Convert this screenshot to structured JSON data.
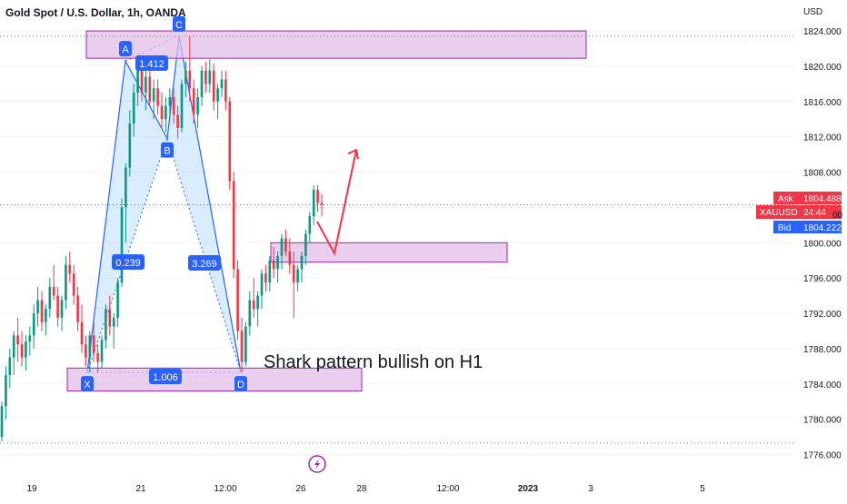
{
  "header": {
    "symbol_title": "Gold Spot / U.S. Dollar, 1h, OANDA"
  },
  "colors": {
    "up": "#089981",
    "down": "#f23645",
    "pattern": "#2962ff",
    "pattern_fill": "#bbdefb",
    "zone_fill": "#e1bee7",
    "zone_stroke": "#9c27b0",
    "ask": "#f23645",
    "bid": "#2962ff",
    "grid": "#f0f3fa",
    "axis_text": "#131722",
    "lightning": "#9c27b0"
  },
  "chart_data": {
    "type": "candlestick",
    "y_unit_label": "USD",
    "ylim": [
      1774,
      1827.5
    ],
    "y_ticks": [
      1776,
      1780,
      1784,
      1788,
      1792,
      1796,
      1800,
      1804,
      1808,
      1812,
      1816,
      1820,
      1824
    ],
    "x_tick_labels": [
      "19",
      "21",
      "12:00",
      "26",
      "28",
      "12:00",
      "2023",
      "3",
      "5"
    ],
    "annotation_text": "Shark pattern bullish on H1",
    "pattern_points": [
      {
        "label": "X",
        "price": 1785.3
      },
      {
        "label": "A",
        "price": 1820.6
      },
      {
        "label": "B",
        "price": 1811.8
      },
      {
        "label": "C",
        "price": 1823.4
      },
      {
        "label": "D",
        "price": 1785.3
      }
    ],
    "ratios": [
      {
        "value": "1.412"
      },
      {
        "value": "0.239"
      },
      {
        "value": "3.269"
      },
      {
        "value": "1.006"
      }
    ],
    "zones": [
      {
        "top": 1824.0,
        "bottom": 1820.9
      },
      {
        "top": 1800.0,
        "bottom": 1797.8
      },
      {
        "top": 1785.8,
        "bottom": 1783.2
      }
    ],
    "projection_prices": [
      1802.4,
      1798.8,
      1810.5
    ],
    "price_tags": {
      "ask_label": "Ask",
      "ask_value": "1804.488",
      "symbol": "XAUUSD",
      "countdown": "24:44",
      "bid_label": "Bid",
      "bid_value": "1804.222",
      "partial_label": "00"
    },
    "candles": [
      [
        1778.0,
        1782.0,
        1777.5,
        1781.5
      ],
      [
        1781.5,
        1786.0,
        1780.0,
        1785.0
      ],
      [
        1785.0,
        1788.0,
        1783.5,
        1787.0
      ],
      [
        1787.0,
        1790.0,
        1785.0,
        1789.5
      ],
      [
        1789.5,
        1791.5,
        1786.5,
        1788.5
      ],
      [
        1788.5,
        1790.0,
        1786.0,
        1787.0
      ],
      [
        1787.0,
        1789.5,
        1785.5,
        1788.8
      ],
      [
        1788.8,
        1790.5,
        1787.2,
        1789.5
      ],
      [
        1789.5,
        1793.0,
        1788.0,
        1792.0
      ],
      [
        1792.0,
        1795.0,
        1790.5,
        1793.5
      ],
      [
        1793.5,
        1794.5,
        1790.0,
        1791.0
      ],
      [
        1791.0,
        1793.0,
        1789.5,
        1792.5
      ],
      [
        1792.5,
        1796.0,
        1791.5,
        1795.0
      ],
      [
        1795.0,
        1797.5,
        1793.5,
        1794.0
      ],
      [
        1794.0,
        1795.0,
        1790.5,
        1791.5
      ],
      [
        1791.5,
        1794.0,
        1790.0,
        1793.5
      ],
      [
        1793.5,
        1798.5,
        1792.5,
        1797.5
      ],
      [
        1797.5,
        1799.0,
        1795.5,
        1796.5
      ],
      [
        1796.5,
        1797.5,
        1793.0,
        1794.0
      ],
      [
        1794.0,
        1795.0,
        1790.0,
        1791.0
      ],
      [
        1791.0,
        1793.0,
        1787.5,
        1788.5
      ],
      [
        1788.5,
        1789.5,
        1786.0,
        1787.0
      ],
      [
        1787.0,
        1790.0,
        1785.3,
        1789.5
      ],
      [
        1789.5,
        1791.0,
        1786.5,
        1787.5
      ],
      [
        1787.5,
        1788.5,
        1785.3,
        1786.5
      ],
      [
        1786.5,
        1789.5,
        1785.8,
        1789.0
      ],
      [
        1789.0,
        1793.0,
        1788.0,
        1792.5
      ],
      [
        1792.5,
        1794.0,
        1789.5,
        1790.5
      ],
      [
        1790.5,
        1792.0,
        1788.0,
        1791.5
      ],
      [
        1791.5,
        1796.0,
        1790.5,
        1795.5
      ],
      [
        1795.5,
        1805.0,
        1795.0,
        1804.0
      ],
      [
        1804.0,
        1809.0,
        1800.0,
        1808.5
      ],
      [
        1808.5,
        1815.0,
        1807.5,
        1813.5
      ],
      [
        1813.5,
        1818.0,
        1812.0,
        1817.0
      ],
      [
        1817.0,
        1820.6,
        1815.5,
        1819.5
      ],
      [
        1819.5,
        1820.0,
        1816.0,
        1817.0
      ],
      [
        1817.0,
        1819.5,
        1815.0,
        1818.8
      ],
      [
        1818.8,
        1819.8,
        1815.5,
        1816.0
      ],
      [
        1816.0,
        1818.5,
        1814.0,
        1817.5
      ],
      [
        1817.5,
        1818.5,
        1814.5,
        1815.5
      ],
      [
        1815.5,
        1817.0,
        1813.0,
        1814.0
      ],
      [
        1814.0,
        1816.5,
        1812.5,
        1815.5
      ],
      [
        1815.5,
        1817.5,
        1814.5,
        1816.5
      ],
      [
        1816.5,
        1817.5,
        1813.5,
        1814.5
      ],
      [
        1814.5,
        1815.5,
        1811.8,
        1813.0
      ],
      [
        1813.0,
        1818.5,
        1812.5,
        1818.0
      ],
      [
        1818.0,
        1820.5,
        1816.5,
        1819.5
      ],
      [
        1819.5,
        1823.4,
        1816.0,
        1817.5
      ],
      [
        1817.5,
        1818.5,
        1813.5,
        1814.5
      ],
      [
        1814.5,
        1817.5,
        1813.0,
        1816.5
      ],
      [
        1816.5,
        1820.0,
        1815.5,
        1819.5
      ],
      [
        1819.5,
        1820.5,
        1817.0,
        1818.0
      ],
      [
        1818.0,
        1820.8,
        1817.0,
        1819.5
      ],
      [
        1819.5,
        1820.3,
        1815.0,
        1816.0
      ],
      [
        1816.0,
        1818.0,
        1814.0,
        1817.5
      ],
      [
        1817.5,
        1819.5,
        1816.5,
        1818.5
      ],
      [
        1818.5,
        1819.5,
        1815.0,
        1816.0
      ],
      [
        1816.0,
        1816.5,
        1806.0,
        1807.0
      ],
      [
        1807.0,
        1808.0,
        1796.0,
        1797.0
      ],
      [
        1797.0,
        1798.0,
        1789.0,
        1790.0
      ],
      [
        1790.0,
        1791.5,
        1785.3,
        1786.5
      ],
      [
        1786.5,
        1791.0,
        1786.0,
        1790.5
      ],
      [
        1790.5,
        1794.5,
        1789.5,
        1793.5
      ],
      [
        1793.5,
        1796.0,
        1791.5,
        1792.5
      ],
      [
        1792.5,
        1794.5,
        1790.5,
        1794.0
      ],
      [
        1794.0,
        1797.0,
        1792.5,
        1796.5
      ],
      [
        1796.5,
        1797.5,
        1794.5,
        1795.5
      ],
      [
        1795.5,
        1798.5,
        1794.5,
        1798.0
      ],
      [
        1798.0,
        1799.5,
        1796.0,
        1797.0
      ],
      [
        1797.0,
        1799.0,
        1795.5,
        1798.5
      ],
      [
        1798.5,
        1801.0,
        1797.0,
        1800.5
      ],
      [
        1800.5,
        1801.5,
        1798.5,
        1799.0
      ],
      [
        1799.0,
        1800.5,
        1796.5,
        1797.5
      ],
      [
        1797.5,
        1799.0,
        1791.5,
        1795.5
      ],
      [
        1795.5,
        1797.5,
        1794.5,
        1797.0
      ],
      [
        1797.0,
        1799.0,
        1795.5,
        1798.5
      ],
      [
        1798.5,
        1801.5,
        1797.5,
        1801.0
      ],
      [
        1801.0,
        1803.5,
        1800.0,
        1803.0
      ],
      [
        1803.0,
        1806.5,
        1802.0,
        1806.0
      ],
      [
        1806.0,
        1806.5,
        1803.5,
        1804.5
      ],
      [
        1804.5,
        1805.5,
        1803.0,
        1804.3
      ]
    ]
  }
}
